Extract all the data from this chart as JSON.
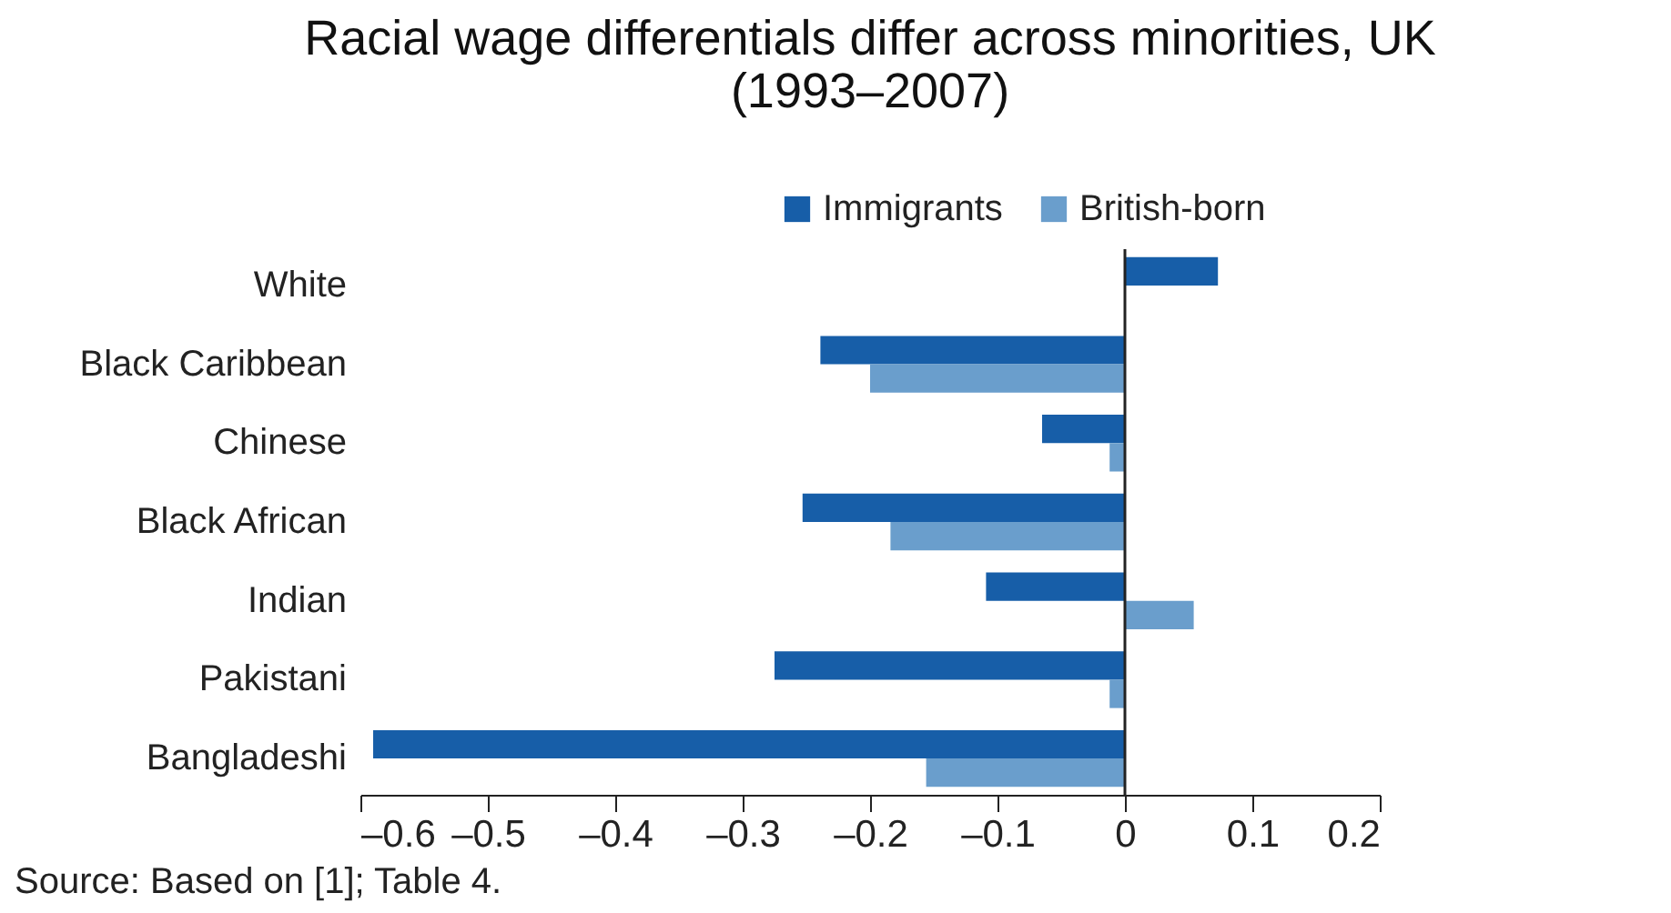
{
  "chart_data": {
    "type": "bar",
    "orientation": "horizontal",
    "title": [
      "Racial wage differentials differ across minorities, UK",
      "(1993–2007)"
    ],
    "categories": [
      "White",
      "Black Caribbean",
      "Chinese",
      "Black African",
      "Indian",
      "Pakistani",
      "Bangladeshi"
    ],
    "series": [
      {
        "name": "Immigrants",
        "color": "#175ea8",
        "values": [
          0.073,
          -0.239,
          -0.065,
          -0.253,
          -0.109,
          -0.275,
          -0.59
        ]
      },
      {
        "name": "British-born",
        "color": "#6a9ecc",
        "values": [
          null,
          -0.2,
          -0.012,
          -0.184,
          0.054,
          -0.012,
          -0.156
        ]
      }
    ],
    "xlim": [
      -0.6,
      0.2
    ],
    "xticks": [
      {
        "value": -0.6,
        "label": "–0.6"
      },
      {
        "value": -0.5,
        "label": "–0.5"
      },
      {
        "value": -0.4,
        "label": "–0.4"
      },
      {
        "value": -0.3,
        "label": "–0.3"
      },
      {
        "value": -0.2,
        "label": "–0.2"
      },
      {
        "value": -0.1,
        "label": "–0.1"
      },
      0,
      0.1,
      0.2
    ],
    "ref_lines": [
      {
        "axis": "x",
        "value": 0
      }
    ],
    "legend": "top right",
    "grid": false,
    "annotations": [
      "Source: Based on [1]; Table 4."
    ]
  }
}
